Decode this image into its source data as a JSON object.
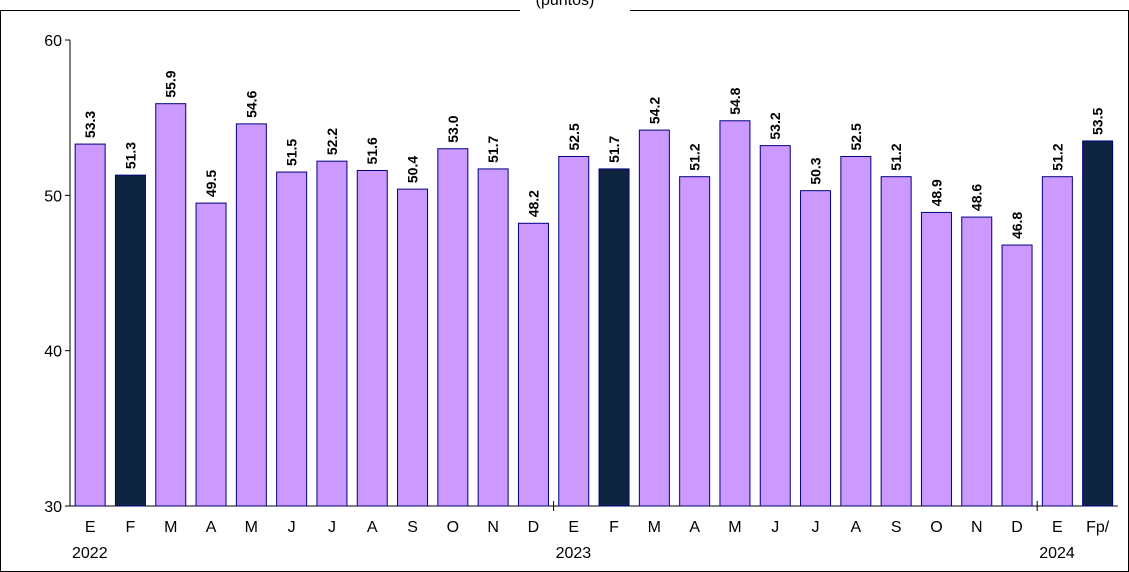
{
  "chart_data": {
    "type": "bar",
    "subtitle": "(puntos)",
    "categories": [
      "E",
      "F",
      "M",
      "A",
      "M",
      "J",
      "J",
      "A",
      "S",
      "O",
      "N",
      "D",
      "E",
      "F",
      "M",
      "A",
      "M",
      "J",
      "J",
      "A",
      "S",
      "O",
      "N",
      "D",
      "E",
      "Fp/"
    ],
    "values": [
      53.3,
      51.3,
      55.9,
      49.5,
      54.6,
      51.5,
      52.2,
      51.6,
      50.4,
      53.0,
      51.7,
      48.2,
      52.5,
      51.7,
      54.2,
      51.2,
      54.8,
      53.2,
      50.3,
      52.5,
      51.2,
      48.9,
      48.6,
      46.8,
      51.2,
      53.5
    ],
    "value_labels": [
      "53.3",
      "51.3",
      "55.9",
      "49.5",
      "54.6",
      "51.5",
      "52.2",
      "51.6",
      "50.4",
      "53.0",
      "51.7",
      "48.2",
      "52.5",
      "51.7",
      "54.2",
      "51.2",
      "54.8",
      "53.2",
      "50.3",
      "52.5",
      "51.2",
      "48.9",
      "48.6",
      "46.8",
      "51.2",
      "53.5"
    ],
    "highlight": [
      false,
      true,
      false,
      false,
      false,
      false,
      false,
      false,
      false,
      false,
      false,
      false,
      false,
      true,
      false,
      false,
      false,
      false,
      false,
      false,
      false,
      false,
      false,
      false,
      false,
      true
    ],
    "year_groups": [
      {
        "label": "2022",
        "start": 0,
        "count": 12
      },
      {
        "label": "2023",
        "start": 12,
        "count": 12
      },
      {
        "label": "2024",
        "start": 24,
        "count": 2
      }
    ],
    "ylim": [
      30,
      60
    ],
    "yticks": [
      30,
      40,
      50,
      60
    ],
    "grid": false,
    "colors": {
      "bar": "#cc99ff",
      "highlight": "#0f2441",
      "outline": "#000080"
    }
  }
}
